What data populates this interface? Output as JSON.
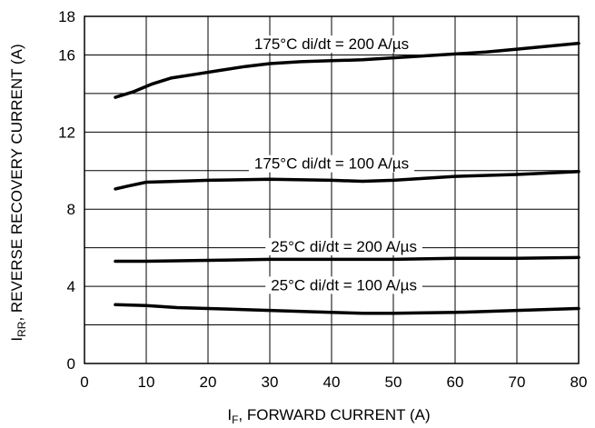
{
  "chart_data": {
    "type": "line",
    "title": "",
    "xlabel": {
      "main": "I",
      "sub": "F",
      "rest": ", FORWARD CURRENT (A)"
    },
    "ylabel": {
      "main": "I",
      "sub": "RR",
      "rest": ", REVERSE RECOVERY CURRENT (A)"
    },
    "xlim": [
      0,
      80
    ],
    "ylim": [
      0,
      18
    ],
    "xticks": [
      0,
      10,
      20,
      30,
      40,
      50,
      60,
      70,
      80
    ],
    "yticks": [
      0,
      4,
      8,
      12,
      16,
      18
    ],
    "xgrid": [
      10,
      20,
      30,
      40,
      50,
      60,
      70
    ],
    "ygrid": [
      2,
      4,
      6,
      8,
      10,
      12,
      14,
      16
    ],
    "grid": true,
    "series": [
      {
        "name": "175°C di/dt = 200 A/µs",
        "x": [
          5,
          8,
          11,
          14,
          18,
          22,
          26,
          30,
          35,
          40,
          45,
          50,
          55,
          60,
          65,
          70,
          75,
          80
        ],
        "y": [
          13.8,
          14.1,
          14.5,
          14.8,
          15.0,
          15.2,
          15.4,
          15.55,
          15.65,
          15.7,
          15.75,
          15.85,
          15.95,
          16.05,
          16.15,
          16.3,
          16.45,
          16.6
        ]
      },
      {
        "name": "175°C di/dt = 100 A/µs",
        "x": [
          5,
          7,
          10,
          15,
          20,
          30,
          40,
          45,
          50,
          55,
          60,
          70,
          80
        ],
        "y": [
          9.05,
          9.2,
          9.4,
          9.45,
          9.5,
          9.55,
          9.5,
          9.45,
          9.5,
          9.6,
          9.7,
          9.8,
          9.95
        ]
      },
      {
        "name": "25°C di/dt = 200 A/µs",
        "x": [
          5,
          10,
          20,
          30,
          40,
          50,
          60,
          70,
          80
        ],
        "y": [
          5.3,
          5.3,
          5.35,
          5.4,
          5.4,
          5.4,
          5.45,
          5.45,
          5.5
        ]
      },
      {
        "name": "25°C di/dt = 100 A/µs",
        "x": [
          5,
          10,
          15,
          20,
          30,
          40,
          45,
          50,
          60,
          70,
          80
        ],
        "y": [
          3.05,
          3.0,
          2.9,
          2.85,
          2.75,
          2.65,
          2.6,
          2.6,
          2.65,
          2.75,
          2.85
        ]
      }
    ],
    "labels": [
      {
        "text": "175°C di/dt = 200 A/µs",
        "x": 40,
        "y": 16.3
      },
      {
        "text": "175°C di/dt = 100 A/µs",
        "x": 40,
        "y": 10.1
      },
      {
        "text": "25°C di/dt = 200 A/µs",
        "x": 42,
        "y": 5.8
      },
      {
        "text": "25°C di/dt = 100 A/µs",
        "x": 42,
        "y": 3.8
      }
    ]
  }
}
